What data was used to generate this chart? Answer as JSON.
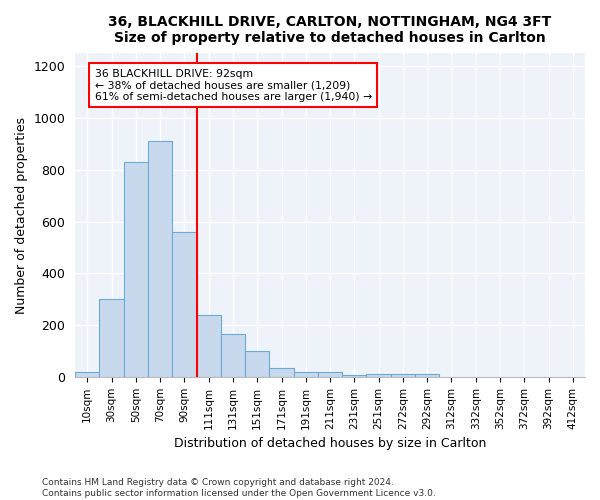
{
  "title1": "36, BLACKHILL DRIVE, CARLTON, NOTTINGHAM, NG4 3FT",
  "title2": "Size of property relative to detached houses in Carlton",
  "xlabel": "Distribution of detached houses by size in Carlton",
  "ylabel": "Number of detached properties",
  "bar_color": "#c8d9ee",
  "bar_edge_color": "#6aaad4",
  "categories": [
    "10sqm",
    "30sqm",
    "50sqm",
    "70sqm",
    "90sqm",
    "111sqm",
    "131sqm",
    "151sqm",
    "171sqm",
    "191sqm",
    "211sqm",
    "231sqm",
    "251sqm",
    "272sqm",
    "292sqm",
    "312sqm",
    "332sqm",
    "352sqm",
    "372sqm",
    "392sqm",
    "412sqm"
  ],
  "values": [
    20,
    300,
    830,
    910,
    560,
    240,
    165,
    100,
    35,
    20,
    20,
    8,
    10,
    10,
    10,
    0,
    0,
    0,
    0,
    0,
    0
  ],
  "ylim": [
    0,
    1250
  ],
  "yticks": [
    0,
    200,
    400,
    600,
    800,
    1000,
    1200
  ],
  "vline_color": "red",
  "annotation_line1": "36 BLACKHILL DRIVE: 92sqm",
  "annotation_line2": "← 38% of detached houses are smaller (1,209)",
  "annotation_line3": "61% of semi-detached houses are larger (1,940) →",
  "annotation_box_color": "white",
  "annotation_box_edge": "red",
  "footer": "Contains HM Land Registry data © Crown copyright and database right 2024.\nContains public sector information licensed under the Open Government Licence v3.0.",
  "background_color": "#eef2f9"
}
